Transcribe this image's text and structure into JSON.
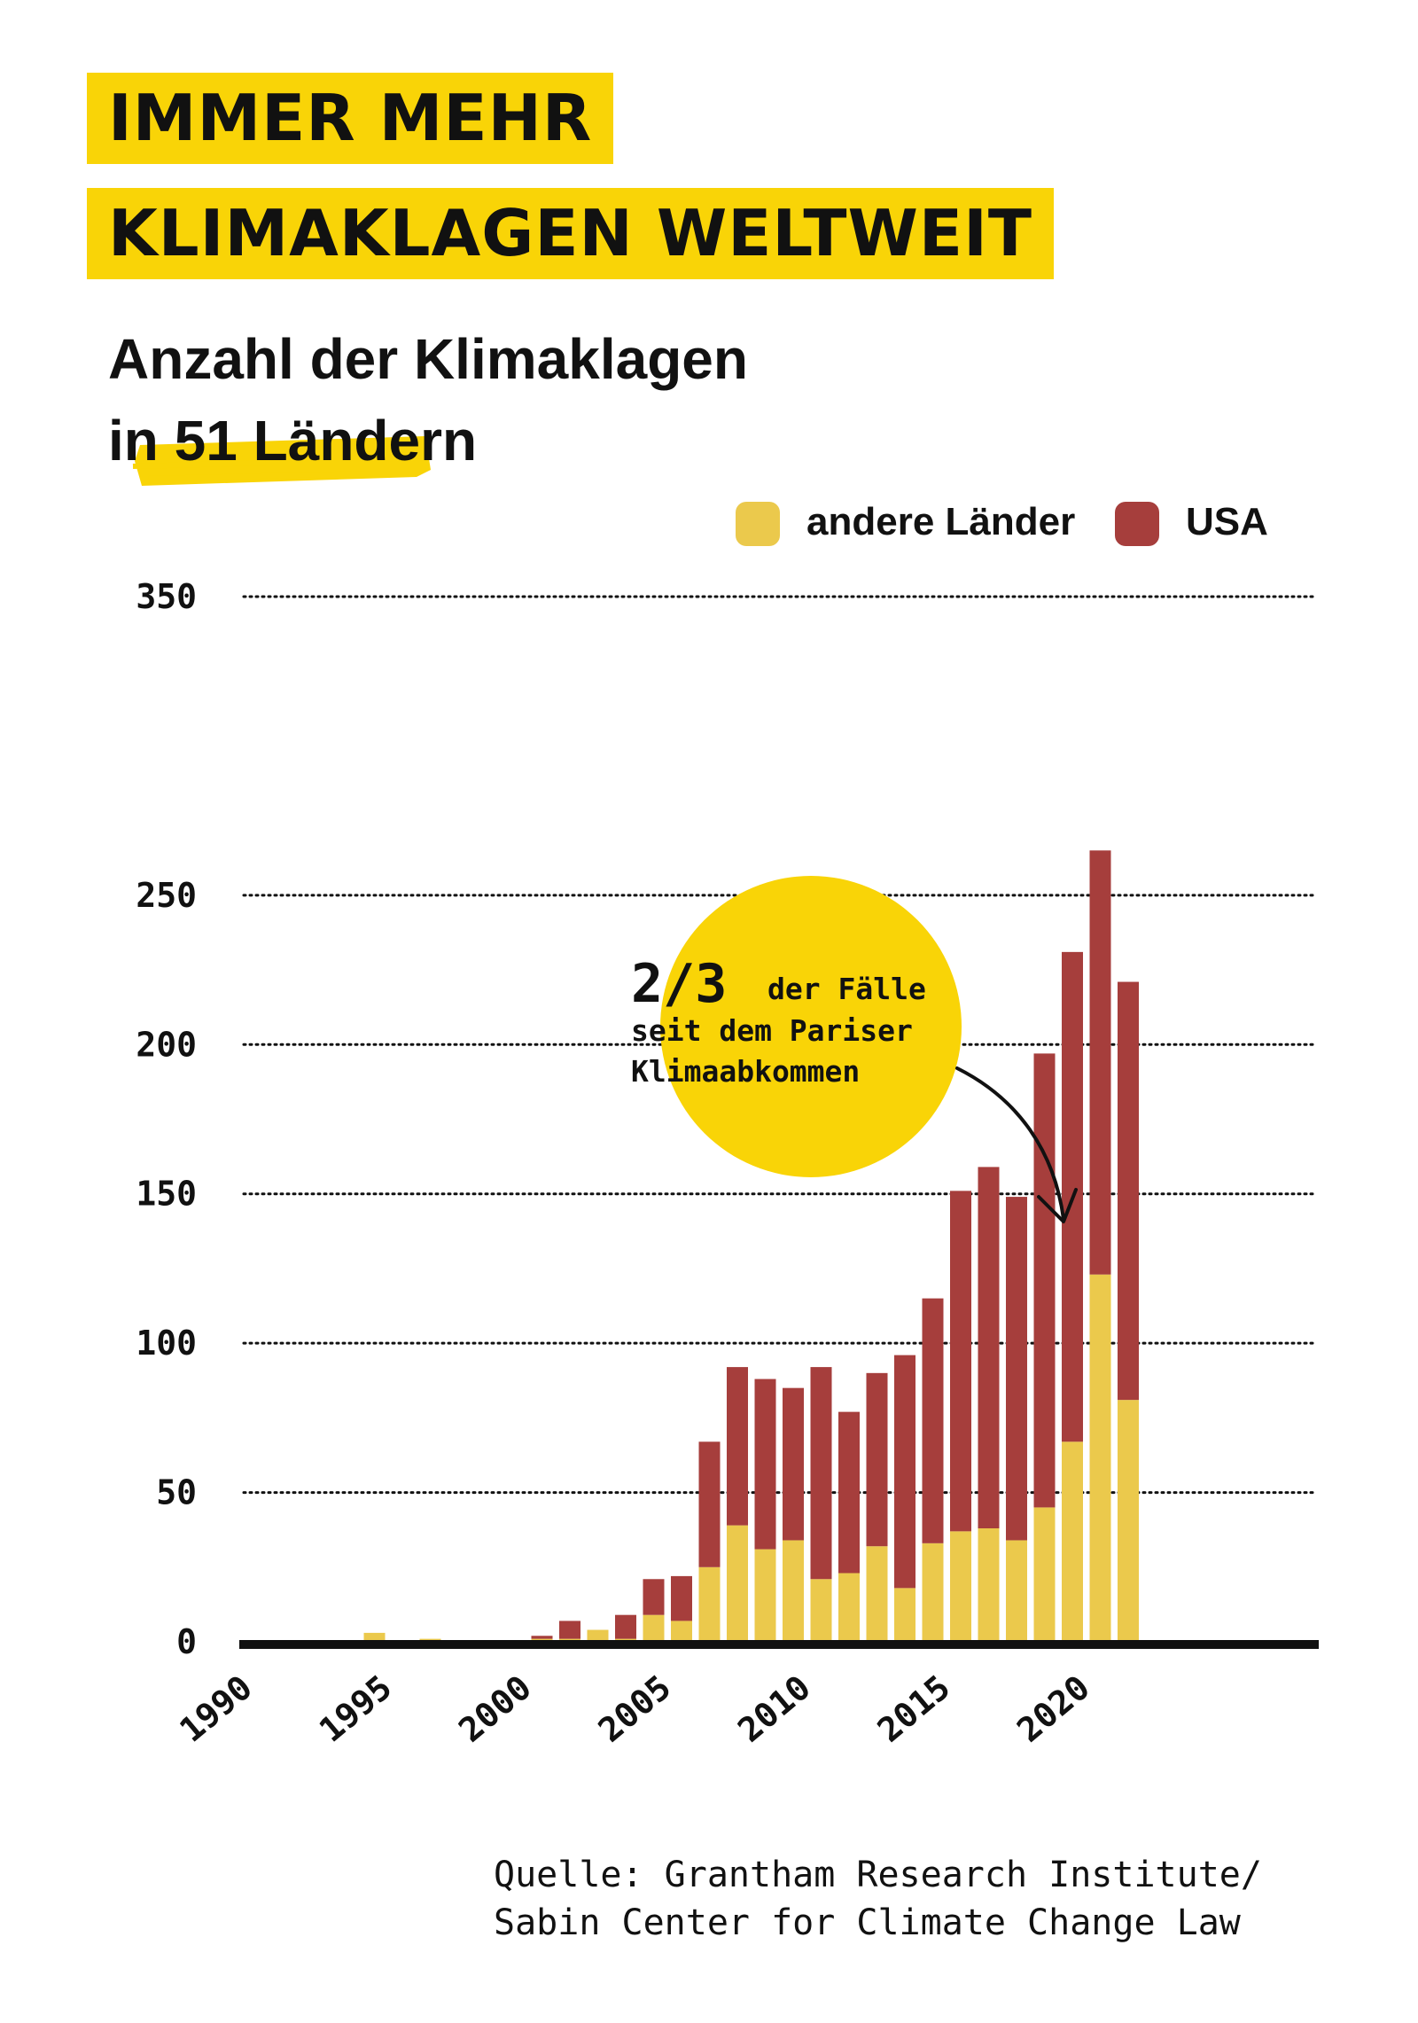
{
  "header": {
    "title_line1": "IMMER MEHR",
    "title_line2": "KLIMAKLAGEN WELTWEIT",
    "subtitle_line1": "Anzahl der Klimaklagen",
    "subtitle_line2": "in 51 Ländern"
  },
  "annotation": {
    "fraction": "2/3",
    "text_line1": "der Fälle",
    "text_line2": "seit dem Pariser",
    "text_line3": "Klimaabkommen"
  },
  "source": {
    "line1": "Quelle: Grantham Research Institute/",
    "line2": "Sabin Center for Climate Change Law"
  },
  "colors": {
    "accent_yellow": "#f9d407",
    "other_countries": "#ebc94c",
    "usa": "#a63e3c",
    "axis": "#111111"
  },
  "chart_data": {
    "type": "bar",
    "stacked": true,
    "x": [
      1986,
      1987,
      1988,
      1989,
      1990,
      1991,
      1992,
      1993,
      1994,
      1995,
      1996,
      1997,
      1998,
      1999,
      2000,
      2001,
      2002,
      2003,
      2004,
      2005,
      2006,
      2007,
      2008,
      2009,
      2010,
      2011,
      2012,
      2013,
      2014,
      2015,
      2016,
      2017,
      2018,
      2019,
      2020,
      2021,
      2022
    ],
    "x_ticks": [
      1990,
      1995,
      2000,
      2005,
      2010,
      2015,
      2020
    ],
    "y_ticks": [
      0,
      50,
      100,
      150,
      200,
      250,
      350
    ],
    "ylim": [
      0,
      350
    ],
    "grid": true,
    "legend_position": "top-right",
    "series": [
      {
        "name": "andere Länder",
        "color": "#ebc94c",
        "values": [
          0,
          0,
          0,
          0,
          0,
          0,
          0,
          0,
          0,
          3,
          0,
          1,
          0,
          0,
          0,
          1,
          1,
          4,
          1,
          9,
          7,
          25,
          39,
          31,
          34,
          21,
          23,
          32,
          18,
          33,
          37,
          38,
          34,
          45,
          67,
          123,
          81
        ]
      },
      {
        "name": "USA",
        "color": "#a63e3c",
        "values": [
          0,
          0,
          0,
          0,
          0,
          0,
          0,
          0,
          0,
          0,
          0,
          0,
          0,
          0,
          0,
          1,
          6,
          0,
          8,
          12,
          15,
          42,
          53,
          57,
          51,
          71,
          54,
          58,
          78,
          82,
          114,
          121,
          115,
          152,
          164,
          142,
          140
        ]
      }
    ]
  }
}
